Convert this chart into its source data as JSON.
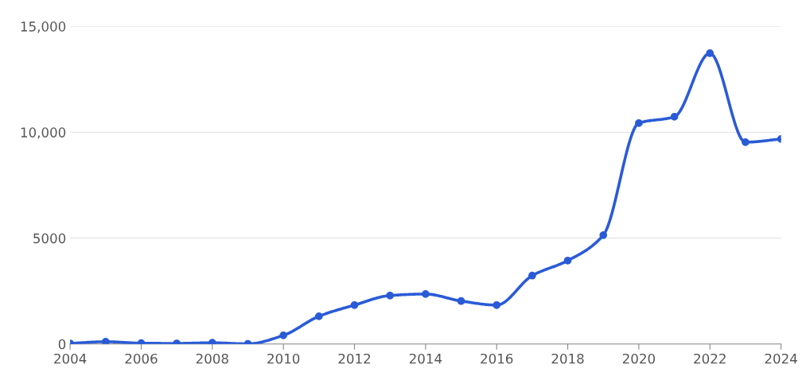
{
  "chart_data": {
    "type": "line",
    "x": [
      2004,
      2005,
      2006,
      2007,
      2008,
      2009,
      2010,
      2011,
      2012,
      2013,
      2014,
      2015,
      2016,
      2017,
      2018,
      2019,
      2020,
      2021,
      2022,
      2023,
      2024
    ],
    "series": [
      {
        "color": "#2a5bd7",
        "values": [
          30,
          110,
          40,
          30,
          60,
          10,
          410,
          1310,
          1840,
          2290,
          2360,
          2030,
          1840,
          3230,
          3940,
          5140,
          10430,
          10730,
          13730,
          9530,
          9680
        ]
      }
    ],
    "xlim": [
      2004,
      2024
    ],
    "xticks": [
      2004,
      2006,
      2008,
      2010,
      2012,
      2014,
      2016,
      2018,
      2020,
      2022,
      2024
    ],
    "ylim": [
      0,
      15000
    ],
    "yticks": [
      0,
      5000,
      {
        "value": 10000,
        "label": "10,000"
      },
      {
        "value": 15000,
        "label": "15,000"
      }
    ],
    "grid": "y",
    "marker": "circle",
    "line_style": "solid"
  }
}
